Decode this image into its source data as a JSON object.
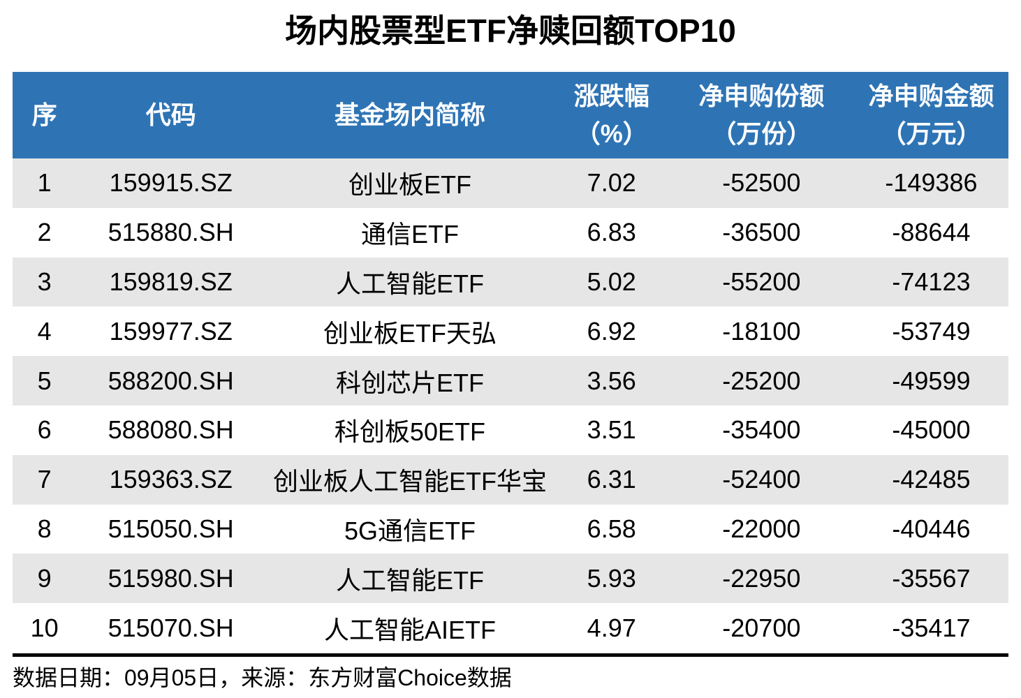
{
  "title": "场内股票型ETF净赎回额TOP10",
  "colors": {
    "header_bg": "#2E74B5",
    "header_text": "#FFFFFF",
    "stripe_bg": "#E6E6E6",
    "row_bg": "#FFFFFF",
    "text": "#000000",
    "divider": "#000000"
  },
  "header": {
    "cells": [
      {
        "line1": "序",
        "line2": ""
      },
      {
        "line1": "代码",
        "line2": ""
      },
      {
        "line1": "基金场内简称",
        "line2": ""
      },
      {
        "line1": "涨跌幅",
        "line2": "（%）"
      },
      {
        "line1": "净申购份额",
        "line2": "（万份）"
      },
      {
        "line1": "净申购金额",
        "line2": "（万元）"
      }
    ]
  },
  "chart_data": {
    "type": "table",
    "title": "场内股票型ETF净赎回额TOP10",
    "columns": [
      "序",
      "代码",
      "基金场内简称",
      "涨跌幅（%）",
      "净申购份额（万份）",
      "净申购金额（万元）"
    ],
    "rows": [
      [
        "1",
        "159915.SZ",
        "创业板ETF",
        "7.02",
        "-52500",
        "-149386"
      ],
      [
        "2",
        "515880.SH",
        "通信ETF",
        "6.83",
        "-36500",
        "-88644"
      ],
      [
        "3",
        "159819.SZ",
        "人工智能ETF",
        "5.02",
        "-55200",
        "-74123"
      ],
      [
        "4",
        "159977.SZ",
        "创业板ETF天弘",
        "6.92",
        "-18100",
        "-53749"
      ],
      [
        "5",
        "588200.SH",
        "科创芯片ETF",
        "3.56",
        "-25200",
        "-49599"
      ],
      [
        "6",
        "588080.SH",
        "科创板50ETF",
        "3.51",
        "-35400",
        "-45000"
      ],
      [
        "7",
        "159363.SZ",
        "创业板人工智能ETF华宝",
        "6.31",
        "-52400",
        "-42485"
      ],
      [
        "8",
        "515050.SH",
        "5G通信ETF",
        "6.58",
        "-22000",
        "-40446"
      ],
      [
        "9",
        "515980.SH",
        "人工智能ETF",
        "5.93",
        "-22950",
        "-35567"
      ],
      [
        "10",
        "515070.SH",
        "人工智能AIETF",
        "4.97",
        "-20700",
        "-35417"
      ]
    ],
    "source_note": "数据日期：09月05日，来源：东方财富Choice数据"
  },
  "footer": {
    "text": "数据日期：09月05日，来源：东方财富Choice数据"
  }
}
